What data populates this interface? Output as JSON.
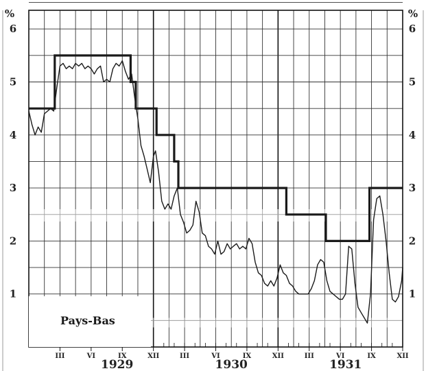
{
  "chart_data": {
    "type": "line",
    "x_unit": "months since Jan 1929 (0 = Jan 1929, 36 = Jan 1932)",
    "xlim": [
      0,
      36
    ],
    "ylim": [
      0,
      6.5
    ],
    "y_unit_label": "%",
    "y_ticks": [
      "1",
      "2",
      "3",
      "4",
      "5",
      "6"
    ],
    "month_ticks": [
      {
        "label": "III",
        "x": 3
      },
      {
        "label": "VI",
        "x": 6
      },
      {
        "label": "IX",
        "x": 9
      },
      {
        "label": "XII",
        "x": 12
      },
      {
        "label": "III",
        "x": 15
      },
      {
        "label": "VI",
        "x": 18
      },
      {
        "label": "IX",
        "x": 21
      },
      {
        "label": "XII",
        "x": 24
      },
      {
        "label": "III",
        "x": 27
      },
      {
        "label": "VI",
        "x": 30
      },
      {
        "label": "IX",
        "x": 33
      },
      {
        "label": "XII",
        "x": 36
      }
    ],
    "year_labels": [
      {
        "label": "1929",
        "x": 8.5
      },
      {
        "label": "1930",
        "x": 19.5
      },
      {
        "label": "1931",
        "x": 30.5
      }
    ],
    "annotation": "Pays-Bas",
    "series": [
      {
        "kind": "step",
        "values": [
          [
            0,
            4.5
          ],
          [
            2.5,
            4.5
          ],
          [
            2.5,
            5.5
          ],
          [
            9.8,
            5.5
          ],
          [
            9.8,
            5.0
          ],
          [
            10.3,
            5.0
          ],
          [
            10.3,
            4.5
          ],
          [
            12.3,
            4.5
          ],
          [
            12.3,
            4.0
          ],
          [
            14.0,
            4.0
          ],
          [
            14.0,
            3.5
          ],
          [
            14.4,
            3.5
          ],
          [
            14.4,
            3.0
          ],
          [
            24.8,
            3.0
          ],
          [
            24.8,
            2.5
          ],
          [
            28.6,
            2.5
          ],
          [
            28.6,
            2.0
          ],
          [
            32.8,
            2.0
          ],
          [
            32.8,
            3.0
          ],
          [
            36,
            3.0
          ]
        ]
      },
      {
        "kind": "line",
        "values": [
          [
            0,
            4.45
          ],
          [
            0.3,
            4.2
          ],
          [
            0.6,
            4.0
          ],
          [
            0.9,
            4.15
          ],
          [
            1.2,
            4.05
          ],
          [
            1.5,
            4.4
          ],
          [
            1.8,
            4.45
          ],
          [
            2.1,
            4.5
          ],
          [
            2.4,
            4.45
          ],
          [
            2.7,
            4.9
          ],
          [
            3.0,
            5.3
          ],
          [
            3.3,
            5.35
          ],
          [
            3.6,
            5.25
          ],
          [
            3.9,
            5.3
          ],
          [
            4.2,
            5.25
          ],
          [
            4.5,
            5.35
          ],
          [
            4.8,
            5.3
          ],
          [
            5.1,
            5.35
          ],
          [
            5.4,
            5.25
          ],
          [
            5.7,
            5.3
          ],
          [
            6.0,
            5.25
          ],
          [
            6.3,
            5.15
          ],
          [
            6.6,
            5.25
          ],
          [
            6.9,
            5.3
          ],
          [
            7.2,
            5.0
          ],
          [
            7.5,
            5.05
          ],
          [
            7.8,
            5.0
          ],
          [
            8.1,
            5.25
          ],
          [
            8.4,
            5.35
          ],
          [
            8.7,
            5.3
          ],
          [
            9.0,
            5.4
          ],
          [
            9.3,
            5.2
          ],
          [
            9.6,
            5.05
          ],
          [
            9.9,
            5.15
          ],
          [
            10.2,
            4.7
          ],
          [
            10.5,
            4.3
          ],
          [
            10.8,
            3.8
          ],
          [
            11.1,
            3.6
          ],
          [
            11.4,
            3.35
          ],
          [
            11.7,
            3.1
          ],
          [
            12.0,
            3.6
          ],
          [
            12.2,
            3.7
          ],
          [
            12.5,
            3.3
          ],
          [
            12.8,
            2.75
          ],
          [
            13.1,
            2.6
          ],
          [
            13.4,
            2.7
          ],
          [
            13.7,
            2.6
          ],
          [
            14.0,
            2.85
          ],
          [
            14.3,
            3.0
          ],
          [
            14.6,
            2.5
          ],
          [
            14.9,
            2.35
          ],
          [
            15.2,
            2.15
          ],
          [
            15.5,
            2.2
          ],
          [
            15.8,
            2.3
          ],
          [
            16.1,
            2.75
          ],
          [
            16.4,
            2.55
          ],
          [
            16.7,
            2.15
          ],
          [
            17.0,
            2.1
          ],
          [
            17.3,
            1.9
          ],
          [
            17.6,
            1.85
          ],
          [
            17.9,
            1.75
          ],
          [
            18.2,
            2.0
          ],
          [
            18.5,
            1.75
          ],
          [
            18.8,
            1.8
          ],
          [
            19.1,
            1.95
          ],
          [
            19.4,
            1.85
          ],
          [
            19.7,
            1.9
          ],
          [
            20.0,
            1.95
          ],
          [
            20.3,
            1.85
          ],
          [
            20.6,
            1.9
          ],
          [
            20.9,
            1.85
          ],
          [
            21.2,
            2.05
          ],
          [
            21.5,
            1.95
          ],
          [
            21.8,
            1.6
          ],
          [
            22.1,
            1.4
          ],
          [
            22.4,
            1.35
          ],
          [
            22.7,
            1.2
          ],
          [
            23.0,
            1.15
          ],
          [
            23.3,
            1.25
          ],
          [
            23.6,
            1.15
          ],
          [
            23.9,
            1.3
          ],
          [
            24.2,
            1.55
          ],
          [
            24.5,
            1.4
          ],
          [
            24.8,
            1.35
          ],
          [
            25.1,
            1.2
          ],
          [
            25.4,
            1.15
          ],
          [
            25.7,
            1.05
          ],
          [
            26.0,
            1.0
          ],
          [
            26.3,
            1.0
          ],
          [
            26.6,
            1.0
          ],
          [
            26.9,
            1.0
          ],
          [
            27.2,
            1.1
          ],
          [
            27.5,
            1.25
          ],
          [
            27.8,
            1.55
          ],
          [
            28.1,
            1.65
          ],
          [
            28.4,
            1.6
          ],
          [
            28.7,
            1.25
          ],
          [
            29.0,
            1.05
          ],
          [
            29.3,
            1.0
          ],
          [
            29.6,
            0.95
          ],
          [
            29.9,
            0.9
          ],
          [
            30.2,
            0.9
          ],
          [
            30.5,
            1.0
          ],
          [
            30.8,
            1.9
          ],
          [
            31.1,
            1.85
          ],
          [
            31.4,
            1.2
          ],
          [
            31.7,
            0.75
          ],
          [
            32.0,
            0.65
          ],
          [
            32.3,
            0.55
          ],
          [
            32.6,
            0.45
          ],
          [
            32.9,
            1.0
          ],
          [
            33.2,
            2.4
          ],
          [
            33.5,
            2.8
          ],
          [
            33.8,
            2.85
          ],
          [
            34.1,
            2.5
          ],
          [
            34.4,
            2.0
          ],
          [
            34.7,
            1.4
          ],
          [
            35.0,
            0.9
          ],
          [
            35.3,
            0.85
          ],
          [
            35.6,
            0.95
          ],
          [
            35.9,
            1.25
          ],
          [
            36,
            1.5
          ]
        ]
      }
    ]
  }
}
